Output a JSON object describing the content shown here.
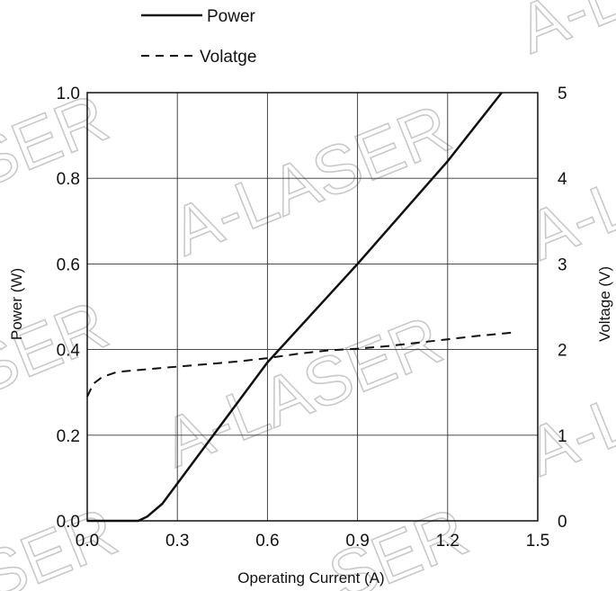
{
  "chart_data": {
    "type": "line",
    "xlabel": "Operating Current (A)",
    "ylabel_left": "Power (W)",
    "ylabel_right": "Voltage (V)",
    "xlim": [
      0.0,
      1.5
    ],
    "ylim_left": [
      0.0,
      1.0
    ],
    "ylim_right": [
      0,
      5
    ],
    "x_ticks": [
      "0.0",
      "0.3",
      "0.6",
      "0.9",
      "1.2",
      "1.5"
    ],
    "x_tick_values": [
      0.0,
      0.3,
      0.6,
      0.9,
      1.2,
      1.5
    ],
    "y_ticks_left": [
      "0.0",
      "0.2",
      "0.4",
      "0.6",
      "0.8",
      "1.0"
    ],
    "y_tick_values_left": [
      0.0,
      0.2,
      0.4,
      0.6,
      0.8,
      1.0
    ],
    "y_ticks_right": [
      "0",
      "1",
      "2",
      "3",
      "4",
      "5"
    ],
    "y_tick_values_right": [
      0,
      1,
      2,
      3,
      4,
      5
    ],
    "grid": true,
    "legend_placement": "top-left, above plot",
    "series": [
      {
        "name": "Power",
        "axis": "left",
        "style": "solid",
        "x": [
          0.0,
          0.17,
          0.2,
          0.25,
          0.6,
          0.9,
          1.2,
          1.38
        ],
        "y": [
          0.0,
          0.0,
          0.01,
          0.04,
          0.37,
          0.6,
          0.84,
          1.0
        ]
      },
      {
        "name": "Volatge",
        "axis": "right",
        "style": "dashed",
        "x": [
          0.0,
          0.02,
          0.05,
          0.1,
          0.2,
          0.3,
          0.4,
          0.5,
          0.6,
          0.7,
          0.8,
          0.9,
          1.0,
          1.1,
          1.2,
          1.3,
          1.42
        ],
        "y": [
          1.45,
          1.6,
          1.68,
          1.74,
          1.77,
          1.8,
          1.83,
          1.86,
          1.9,
          1.95,
          1.99,
          2.01,
          2.04,
          2.08,
          2.12,
          2.16,
          2.2
        ]
      }
    ]
  },
  "watermark": {
    "text": "A-LASER",
    "fragment": "SER",
    "color": "#c9c9c9"
  }
}
